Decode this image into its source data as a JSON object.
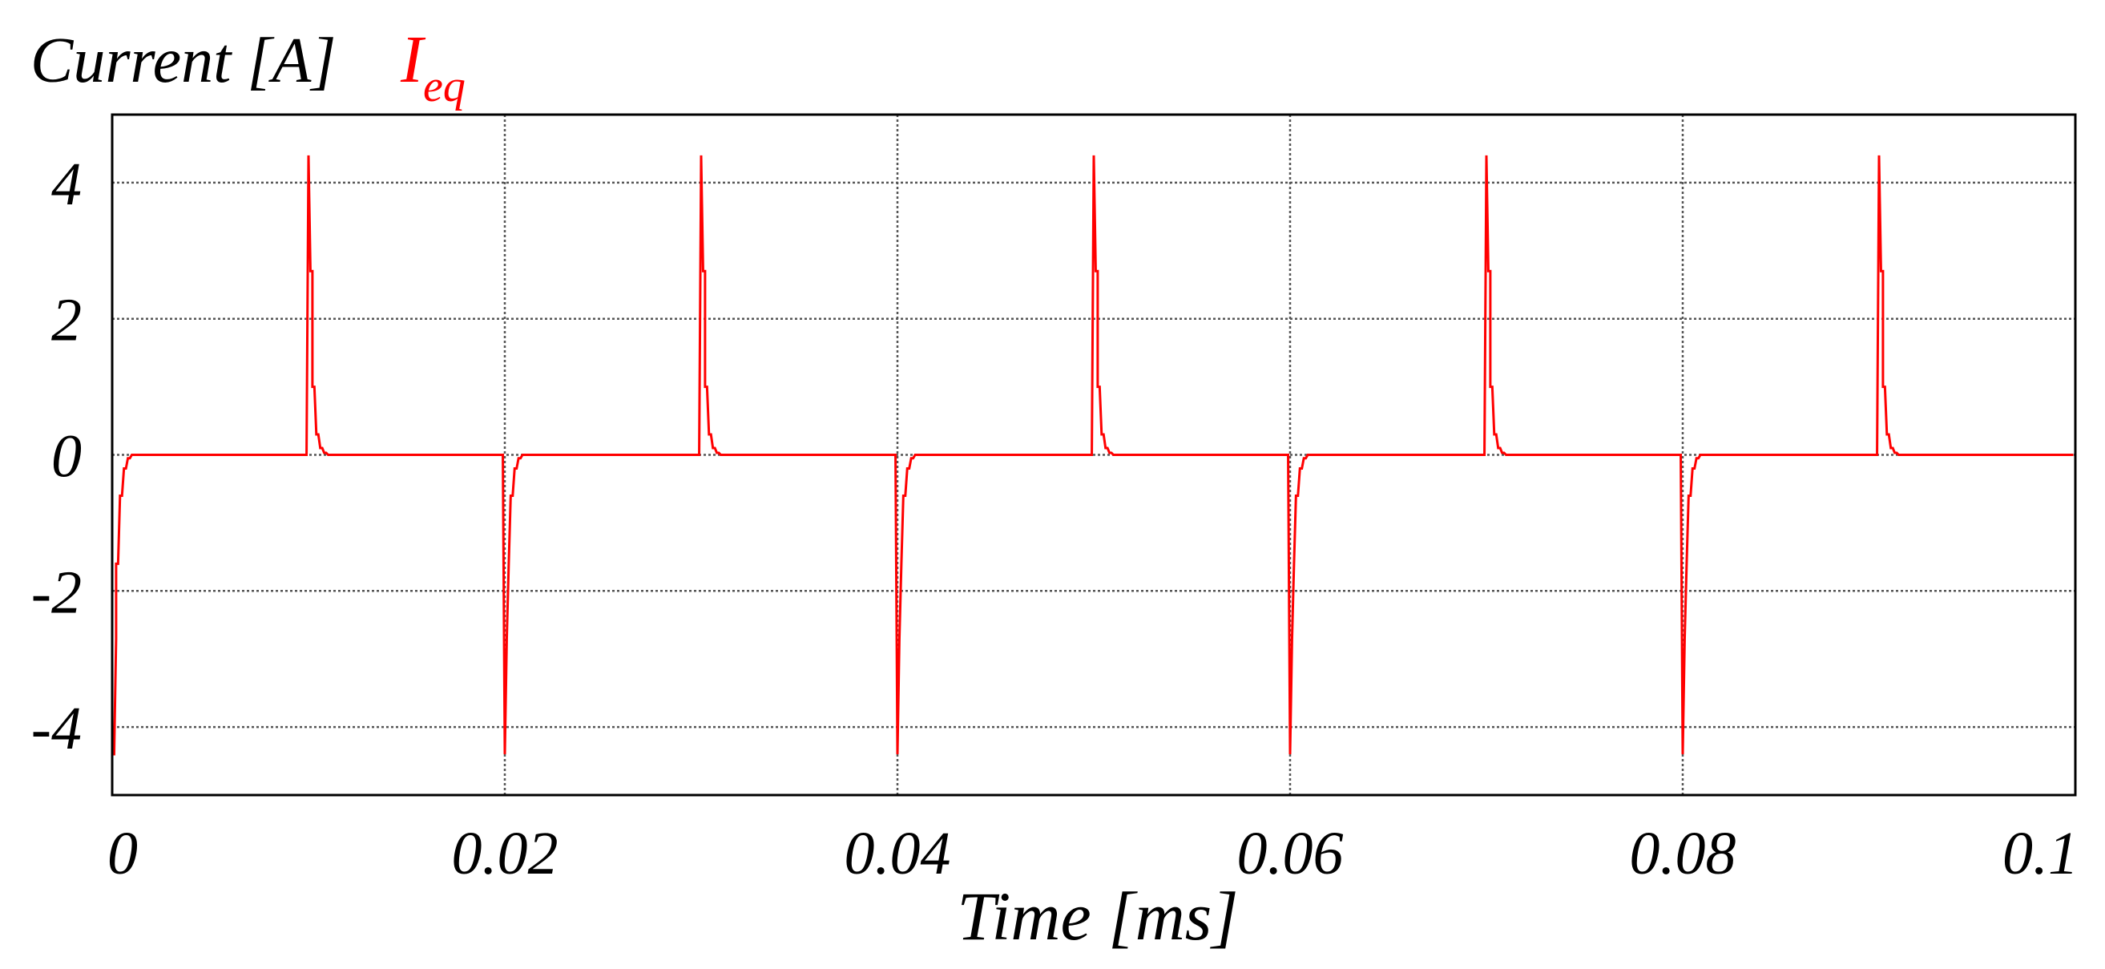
{
  "chart_data": {
    "type": "line",
    "ylabel": "Current [A]",
    "xlabel": "Time [ms]",
    "xlim": [
      0,
      0.1
    ],
    "ylim": [
      -5,
      5
    ],
    "x_ticks": [
      0,
      0.02,
      0.04,
      0.06,
      0.08,
      0.1
    ],
    "x_tick_labels": [
      "0",
      "0.02",
      "0.04",
      "0.06",
      "0.08",
      "0.1"
    ],
    "y_ticks": [
      4,
      2,
      0,
      -2,
      -4
    ],
    "y_tick_labels": [
      "4",
      "2",
      "0",
      "-2",
      "-4"
    ],
    "grid": true,
    "series": [
      {
        "name": "I",
        "name_subscript": "eq",
        "color": "#ff0000",
        "x": [
          0,
          0,
          0.0001,
          0.0002,
          0.0002,
          0.0003,
          0.0004,
          0.0005,
          0.0006,
          0.0007,
          0.0008,
          0.0009,
          0.001,
          0.0099,
          0.01,
          0.01,
          0.0101,
          0.0102,
          0.0102,
          0.0103,
          0.0104,
          0.0105,
          0.0106,
          0.0107,
          0.0108,
          0.0109,
          0.011,
          0.0199,
          0.02,
          0.02,
          0.0201,
          0.0202,
          0.0202,
          0.0203,
          0.0204,
          0.0205,
          0.0206,
          0.0207,
          0.0208,
          0.0209,
          0.021,
          0.0299,
          0.03,
          0.03,
          0.0301,
          0.0302,
          0.0302,
          0.0303,
          0.0304,
          0.0305,
          0.0306,
          0.0307,
          0.0308,
          0.0309,
          0.031,
          0.0399,
          0.04,
          0.04,
          0.0401,
          0.0402,
          0.0402,
          0.0403,
          0.0404,
          0.0405,
          0.0406,
          0.0407,
          0.0408,
          0.0409,
          0.041,
          0.0499,
          0.05,
          0.05,
          0.0501,
          0.0502,
          0.0502,
          0.0503,
          0.0504,
          0.0505,
          0.0506,
          0.0507,
          0.0508,
          0.0509,
          0.051,
          0.0599,
          0.06,
          0.06,
          0.0601,
          0.0602,
          0.0602,
          0.0603,
          0.0604,
          0.0605,
          0.0606,
          0.0607,
          0.0608,
          0.0609,
          0.061,
          0.0699,
          0.07,
          0.07,
          0.0701,
          0.0702,
          0.0702,
          0.0703,
          0.0704,
          0.0705,
          0.0706,
          0.0707,
          0.0708,
          0.0709,
          0.071,
          0.0799,
          0.08,
          0.08,
          0.0801,
          0.0802,
          0.0802,
          0.0803,
          0.0804,
          0.0805,
          0.0806,
          0.0807,
          0.0808,
          0.0809,
          0.081,
          0.0899,
          0.09,
          0.09,
          0.0901,
          0.0902,
          0.0902,
          0.0903,
          0.0904,
          0.0905,
          0.0906,
          0.0907,
          0.0908,
          0.0909,
          0.091,
          0.0999
        ],
        "y": [
          0,
          -4.4,
          -4.4,
          -2.7,
          -1.6,
          -1.6,
          -0.6,
          -0.6,
          -0.2,
          -0.2,
          -0.05,
          -0.05,
          0,
          0,
          4.4,
          4.4,
          2.7,
          2.7,
          1.0,
          1.0,
          0.3,
          0.3,
          0.1,
          0.1,
          0.03,
          0.03,
          0,
          0,
          -4.4,
          -4.4,
          -2.7,
          -1.6,
          -1.6,
          -0.6,
          -0.6,
          -0.2,
          -0.2,
          -0.05,
          -0.05,
          0,
          0,
          0,
          4.4,
          4.4,
          2.7,
          2.7,
          1.0,
          1.0,
          0.3,
          0.3,
          0.1,
          0.1,
          0.03,
          0.03,
          0,
          0,
          -4.4,
          -4.4,
          -2.7,
          -1.6,
          -1.6,
          -0.6,
          -0.6,
          -0.2,
          -0.2,
          -0.05,
          -0.05,
          0,
          0,
          0,
          4.4,
          4.4,
          2.7,
          2.7,
          1.0,
          1.0,
          0.3,
          0.3,
          0.1,
          0.1,
          0.03,
          0.03,
          0,
          0,
          -4.4,
          -4.4,
          -2.7,
          -1.6,
          -1.6,
          -0.6,
          -0.6,
          -0.2,
          -0.2,
          -0.05,
          -0.05,
          0,
          0,
          0,
          4.4,
          4.4,
          2.7,
          2.7,
          1.0,
          1.0,
          0.3,
          0.3,
          0.1,
          0.1,
          0.03,
          0.03,
          0,
          0,
          -4.4,
          -4.4,
          -2.7,
          -1.6,
          -1.6,
          -0.6,
          -0.6,
          -0.2,
          -0.2,
          -0.05,
          -0.05,
          0,
          0,
          0,
          4.4,
          4.4,
          2.7,
          2.7,
          1.0,
          1.0,
          0.3,
          0.3,
          0.1,
          0.1,
          0.03,
          0.03,
          0,
          0
        ]
      }
    ]
  }
}
